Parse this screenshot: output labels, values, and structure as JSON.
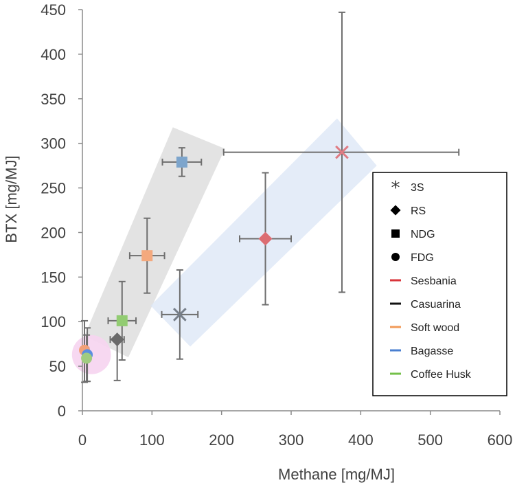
{
  "chart_data": {
    "type": "scatter",
    "xlabel": "Methane [mg/MJ]",
    "ylabel": "BTX [mg/MJ]",
    "xlim": [
      0,
      600
    ],
    "ylim": [
      0,
      450
    ],
    "x_ticks": [
      0,
      100,
      200,
      300,
      400,
      500,
      600
    ],
    "y_ticks": [
      0,
      50,
      100,
      150,
      200,
      250,
      300,
      350,
      400,
      450
    ],
    "grid": false,
    "legend_position": "right",
    "legend": {
      "markers": [
        {
          "label": "3S",
          "symbol": "asterisk",
          "text": "*"
        },
        {
          "label": "RS",
          "symbol": "diamond"
        },
        {
          "label": "NDG",
          "symbol": "square"
        },
        {
          "label": "FDG",
          "symbol": "circle"
        }
      ],
      "feedstocks": [
        {
          "label": "Sesbania",
          "color": "#d9353b"
        },
        {
          "label": "Casuarina",
          "color": "#111111"
        },
        {
          "label": "Soft wood",
          "color": "#f29a58"
        },
        {
          "label": "Bagasse",
          "color": "#4a7fd0"
        },
        {
          "label": "Coffee Husk",
          "color": "#74c04a"
        }
      ]
    },
    "series": [
      {
        "name": "Sesbania 3S",
        "marker": "x",
        "color": "#e07b83",
        "x": 373,
        "y": 290,
        "xerr": [
          170,
          168
        ],
        "yerr": [
          157,
          157
        ]
      },
      {
        "name": "Sesbania RS",
        "marker": "diamond",
        "color": "#dc6d72",
        "x": 263,
        "y": 193,
        "xerr": [
          37,
          37
        ],
        "yerr": [
          74,
          74
        ]
      },
      {
        "name": "Casuarina 3S",
        "marker": "x",
        "color": "#777f8a",
        "x": 140,
        "y": 108,
        "xerr": [
          26,
          26
        ],
        "yerr": [
          50,
          50
        ]
      },
      {
        "name": "Casuarina RS",
        "marker": "diamond",
        "color": "#6a6a6a",
        "x": 50,
        "y": 80,
        "xerr": [
          10,
          10
        ],
        "yerr": [
          46,
          0
        ]
      },
      {
        "name": "Bagasse NDG",
        "marker": "square",
        "color": "#7da5cc",
        "x": 143,
        "y": 279,
        "xerr": [
          28,
          28
        ],
        "yerr": [
          16,
          16
        ]
      },
      {
        "name": "Soft wood NDG",
        "marker": "square",
        "color": "#f4a97e",
        "x": 93,
        "y": 174,
        "xerr": [
          25,
          25
        ],
        "yerr": [
          42,
          42
        ]
      },
      {
        "name": "Coffee Husk NDG",
        "marker": "square",
        "color": "#92cc72",
        "x": 57,
        "y": 101,
        "xerr": [
          20,
          20
        ],
        "yerr": [
          44,
          44
        ]
      },
      {
        "name": "Soft wood FDG",
        "marker": "circle",
        "color": "#f2a079",
        "x": 3,
        "y": 68,
        "xerr": [
          3,
          6
        ],
        "yerr": [
          36,
          33
        ]
      },
      {
        "name": "Bagasse FDG",
        "marker": "circle",
        "color": "#5b8fe0",
        "x": 7,
        "y": 63,
        "xerr": [
          3,
          3
        ],
        "yerr": [
          30,
          30
        ]
      },
      {
        "name": "Coffee Husk FDG",
        "marker": "circle",
        "color": "#a0cc80",
        "x": 6,
        "y": 59,
        "xerr": [
          3,
          3
        ],
        "yerr": [
          26,
          26
        ]
      }
    ],
    "highlight_bands": [
      {
        "name": "NDG band",
        "color": "#d9d9d9",
        "corners": [
          [
            130,
            318
          ],
          [
            205,
            294
          ],
          [
            66,
            60
          ],
          [
            3,
            84
          ]
        ]
      },
      {
        "name": "3S/RS band",
        "color": "#dbe5f5",
        "corners": [
          [
            366,
            328
          ],
          [
            423,
            275
          ],
          [
            155,
            72
          ],
          [
            98,
            118
          ]
        ]
      }
    ],
    "highlight_circle": {
      "name": "FDG cluster",
      "color": "#f6d4f0",
      "center": [
        13,
        63
      ],
      "radius_x": 28
    }
  }
}
